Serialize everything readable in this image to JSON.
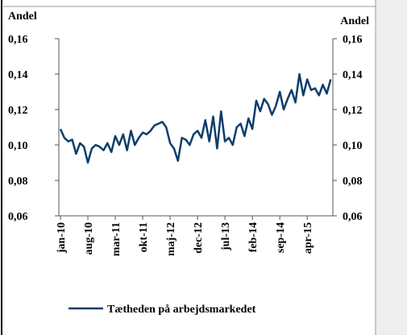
{
  "chart_data": {
    "type": "line",
    "y_label": "Andel",
    "y2_label": "Andel",
    "categories": [
      "jan-10",
      null,
      null,
      null,
      null,
      null,
      null,
      "aug-10",
      null,
      null,
      null,
      null,
      null,
      null,
      "mar-11",
      null,
      null,
      null,
      null,
      null,
      null,
      "okt-11",
      null,
      null,
      null,
      null,
      null,
      null,
      "maj-12",
      null,
      null,
      null,
      null,
      null,
      null,
      "dec-12",
      null,
      null,
      null,
      null,
      null,
      null,
      "jul-13",
      null,
      null,
      null,
      null,
      null,
      null,
      "feb-14",
      null,
      null,
      null,
      null,
      null,
      null,
      "sep-14",
      null,
      null,
      null,
      null,
      null,
      null,
      "apr-15",
      null,
      null,
      null,
      null,
      null,
      null
    ],
    "series": [
      {
        "name": "Tætheden på arbejdsmarkedet",
        "color": "#0d3d6b",
        "values": [
          0.109,
          0.104,
          0.102,
          0.103,
          0.095,
          0.101,
          0.099,
          0.09,
          0.098,
          0.1,
          0.099,
          0.097,
          0.101,
          0.096,
          0.105,
          0.1,
          0.106,
          0.097,
          0.108,
          0.1,
          0.104,
          0.107,
          0.106,
          0.108,
          0.111,
          0.112,
          0.113,
          0.11,
          0.101,
          0.098,
          0.091,
          0.104,
          0.103,
          0.1,
          0.106,
          0.108,
          0.104,
          0.114,
          0.102,
          0.116,
          0.098,
          0.119,
          0.102,
          0.104,
          0.1,
          0.11,
          0.112,
          0.105,
          0.115,
          0.109,
          0.125,
          0.119,
          0.126,
          0.123,
          0.117,
          0.122,
          0.13,
          0.12,
          0.126,
          0.131,
          0.124,
          0.14,
          0.128,
          0.137,
          0.131,
          0.132,
          0.128,
          0.134,
          0.129,
          0.137
        ]
      }
    ],
    "ylim": [
      0.06,
      0.16
    ],
    "yticks": [
      {
        "value": 0.06,
        "label": "0,06"
      },
      {
        "value": 0.08,
        "label": "0,08"
      },
      {
        "value": 0.1,
        "label": "0,10"
      },
      {
        "value": 0.12,
        "label": "0,12"
      },
      {
        "value": 0.14,
        "label": "0,14"
      },
      {
        "value": 0.16,
        "label": "0,16"
      }
    ],
    "y2lim": [
      0.06,
      0.16
    ],
    "y2ticks": [
      {
        "value": 0.06,
        "label": "0,06"
      },
      {
        "value": 0.08,
        "label": "0,08"
      },
      {
        "value": 0.1,
        "label": "0,10"
      },
      {
        "value": 0.12,
        "label": "0,12"
      },
      {
        "value": 0.14,
        "label": "0,14"
      },
      {
        "value": 0.16,
        "label": "0,16"
      }
    ],
    "legend": "bottom"
  }
}
